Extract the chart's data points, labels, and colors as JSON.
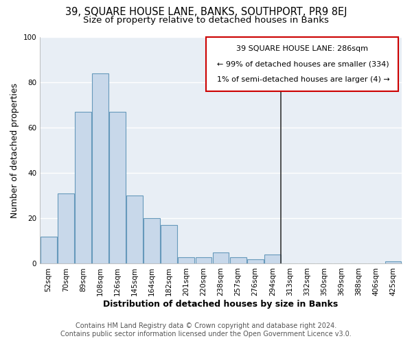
{
  "title": "39, SQUARE HOUSE LANE, BANKS, SOUTHPORT, PR9 8EJ",
  "subtitle": "Size of property relative to detached houses in Banks",
  "xlabel": "Distribution of detached houses by size in Banks",
  "ylabel": "Number of detached properties",
  "bar_color": "#c8d8ea",
  "bar_edge_color": "#6699bb",
  "categories": [
    "52sqm",
    "70sqm",
    "89sqm",
    "108sqm",
    "126sqm",
    "145sqm",
    "164sqm",
    "182sqm",
    "201sqm",
    "220sqm",
    "238sqm",
    "257sqm",
    "276sqm",
    "294sqm",
    "313sqm",
    "332sqm",
    "350sqm",
    "369sqm",
    "388sqm",
    "406sqm",
    "425sqm"
  ],
  "values": [
    12,
    31,
    67,
    84,
    67,
    30,
    20,
    17,
    3,
    3,
    5,
    3,
    2,
    4,
    0,
    0,
    0,
    0,
    0,
    0,
    1
  ],
  "ylim": [
    0,
    100
  ],
  "yticks": [
    0,
    20,
    40,
    60,
    80,
    100
  ],
  "property_line_x": 13.5,
  "property_line_color": "#333333",
  "annotation_title": "39 SQUARE HOUSE LANE: 286sqm",
  "annotation_line1": "← 99% of detached houses are smaller (334)",
  "annotation_line2": "1% of semi-detached houses are larger (4) →",
  "annotation_box_color": "#ffffff",
  "annotation_box_edge_color": "#cc0000",
  "footer_line1": "Contains HM Land Registry data © Crown copyright and database right 2024.",
  "footer_line2": "Contains public sector information licensed under the Open Government Licence v3.0.",
  "background_color": "#ffffff",
  "plot_bg_color": "#e8eef5",
  "grid_color": "#ffffff",
  "title_fontsize": 10.5,
  "subtitle_fontsize": 9.5,
  "axis_label_fontsize": 9,
  "tick_fontsize": 7.5,
  "footer_fontsize": 7,
  "annotation_fontsize": 8
}
